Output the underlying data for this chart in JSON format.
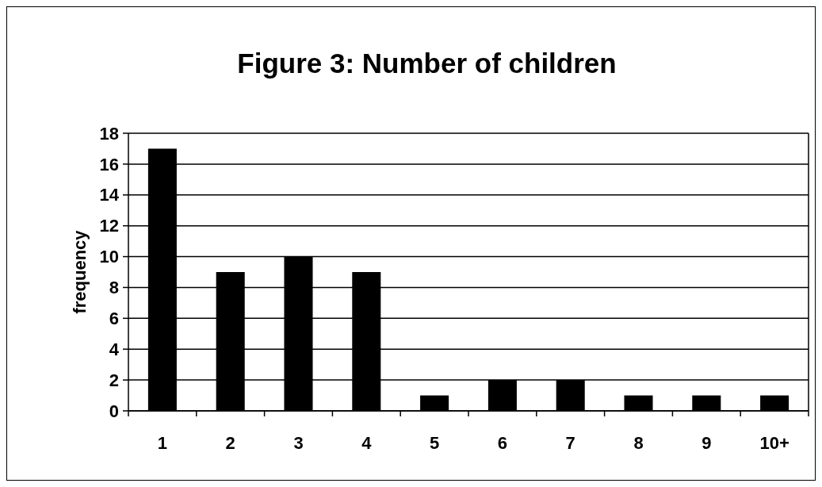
{
  "chart_data": {
    "type": "bar",
    "title": "Figure 3: Number of children",
    "ylabel": "frequency",
    "categories": [
      "1",
      "2",
      "3",
      "4",
      "5",
      "6",
      "7",
      "8",
      "9",
      "10+"
    ],
    "values": [
      17,
      9,
      10,
      9,
      1,
      2,
      2,
      1,
      1,
      1
    ],
    "color": "#000000",
    "ylim": [
      0,
      18
    ],
    "yticks": [
      0,
      2,
      4,
      6,
      8,
      10,
      12,
      14,
      16,
      18
    ],
    "grid": "y"
  }
}
